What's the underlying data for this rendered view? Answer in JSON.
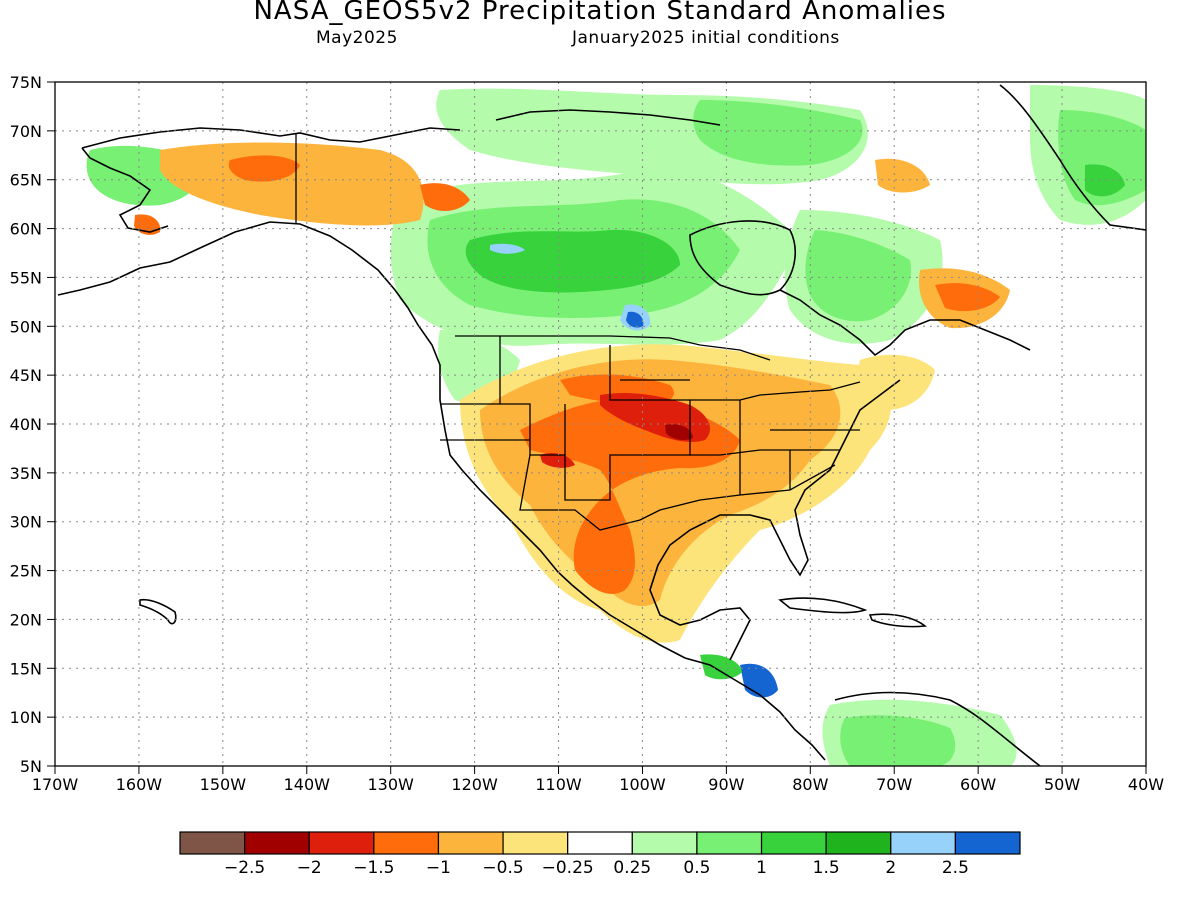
{
  "header": {
    "title": "NASA_GEOS5v2 Precipitation Standard Anomalies",
    "valid_month": "May2025",
    "init": "January2025 initial conditions"
  },
  "map": {
    "lat_labels": [
      "75N",
      "70N",
      "65N",
      "60N",
      "55N",
      "50N",
      "45N",
      "40N",
      "35N",
      "30N",
      "25N",
      "20N",
      "15N",
      "10N",
      "5N"
    ],
    "lat_values": [
      75,
      70,
      65,
      60,
      55,
      50,
      45,
      40,
      35,
      30,
      25,
      20,
      15,
      10,
      5
    ],
    "lon_labels": [
      "170W",
      "160W",
      "150W",
      "140W",
      "130W",
      "120W",
      "110W",
      "100W",
      "90W",
      "80W",
      "70W",
      "60W",
      "50W",
      "40W"
    ],
    "lon_values": [
      -170,
      -160,
      -150,
      -140,
      -130,
      -120,
      -110,
      -100,
      -90,
      -80,
      -70,
      -60,
      -50,
      -40
    ],
    "lon_range": [
      -170,
      -40
    ],
    "lat_range": [
      5,
      75
    ],
    "gridlines": "dotted"
  },
  "colorbar": {
    "colors": [
      "#7f5548",
      "#a10000",
      "#dd1f0b",
      "#ff6c0c",
      "#fcb43d",
      "#fde47a",
      "#ffffff",
      "#b4fbab",
      "#78f073",
      "#37d23c",
      "#1fb41e",
      "#96d2fa",
      "#1464d2"
    ],
    "labels": [
      "-2.5",
      "-2",
      "-1.5",
      "-1",
      "-0.5",
      "-0.25",
      "0.25",
      "0.5",
      "1",
      "1.5",
      "2",
      "2.5"
    ]
  }
}
